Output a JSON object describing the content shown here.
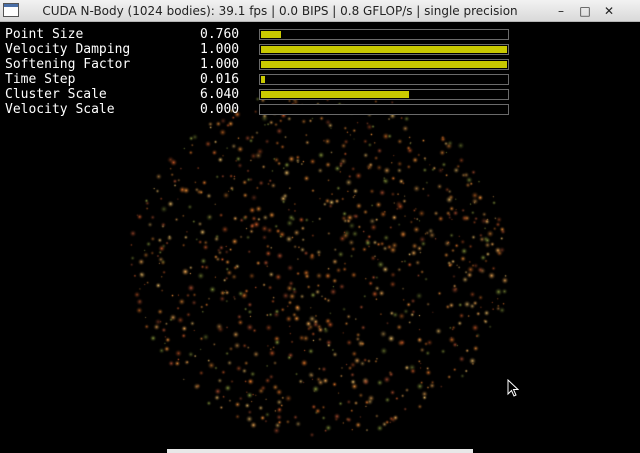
{
  "window": {
    "title": "CUDA N-Body (1024 bodies): 39.1 fps | 0.0 BIPS | 0.8 GFLOP/s | single precision",
    "icons": {
      "app": "window-app-icon",
      "minimize": "minimize-icon",
      "maximize": "maximize-icon",
      "close": "close-icon"
    },
    "buttons": {
      "minimize": "–",
      "maximize": "□",
      "close": "✕"
    }
  },
  "params": [
    {
      "label": "Point Size",
      "value": "0.760",
      "fill": 0.08
    },
    {
      "label": "Velocity Damping",
      "value": "1.000",
      "fill": 1.0
    },
    {
      "label": "Softening Factor",
      "value": "1.000",
      "fill": 1.0
    },
    {
      "label": "Time Step",
      "value": "0.016",
      "fill": 0.016
    },
    {
      "label": "Cluster Scale",
      "value": "6.040",
      "fill": 0.6
    },
    {
      "label": "Velocity Scale",
      "value": "0.000",
      "fill": 0.0
    }
  ],
  "colors": {
    "slider_fill": "#c8c800",
    "star_colors": [
      "#ff9a3c",
      "#e87a2a",
      "#ffb45a",
      "#d9602a",
      "#ffcc70",
      "#8fa040",
      "#b05030"
    ]
  },
  "simulation": {
    "bodies": 1024
  }
}
